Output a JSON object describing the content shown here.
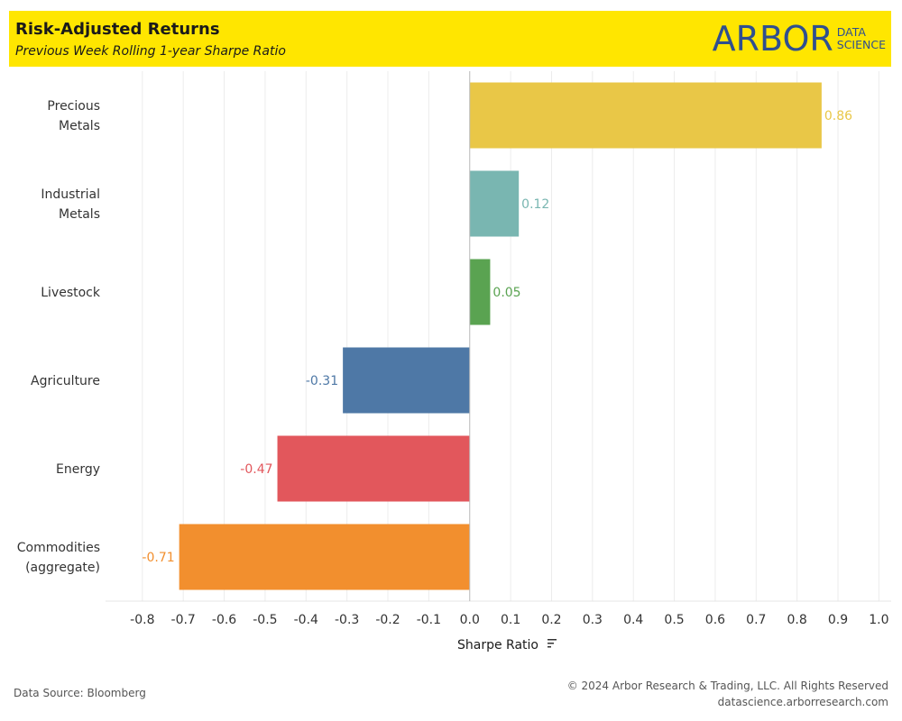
{
  "header": {
    "title": "Risk-Adjusted Returns",
    "subtitle": "Previous Week Rolling 1-year Sharpe Ratio",
    "logo": {
      "word": "ARBOR",
      "line1": "DATA",
      "line2": "SCIENCE"
    }
  },
  "footer": {
    "source": "Data Source: Bloomberg",
    "copyright": "© 2024 Arbor Research & Trading, LLC. All Rights Reserved",
    "website": "datascience.arborresearch.com"
  },
  "colors": {
    "header_bg": "#ffe600",
    "logo": "#2f4f8f"
  },
  "chart_data": {
    "type": "bar",
    "orientation": "horizontal",
    "xlabel": "Sharpe Ratio",
    "xlabel_icon": "sort-descending-icon",
    "xlim": [
      -0.89,
      1.03
    ],
    "xticks": [
      -0.8,
      -0.7,
      -0.6,
      -0.5,
      -0.4,
      -0.3,
      -0.2,
      -0.1,
      0.0,
      0.1,
      0.2,
      0.3,
      0.4,
      0.5,
      0.6,
      0.7,
      0.8,
      0.9,
      1.0
    ],
    "grid": true,
    "bars": [
      {
        "category": [
          "Precious",
          "Metals"
        ],
        "value": 0.86,
        "label": "0.86",
        "color": "#e9c747"
      },
      {
        "category": [
          "Industrial",
          "Metals"
        ],
        "value": 0.12,
        "label": "0.12",
        "color": "#79b6b1"
      },
      {
        "category": [
          "Livestock"
        ],
        "value": 0.05,
        "label": "0.05",
        "color": "#5aa351"
      },
      {
        "category": [
          "Agriculture"
        ],
        "value": -0.31,
        "label": "-0.31",
        "color": "#4e78a6"
      },
      {
        "category": [
          "Energy"
        ],
        "value": -0.47,
        "label": "-0.47",
        "color": "#e2575c"
      },
      {
        "category": [
          "Commodities",
          "(aggregate)"
        ],
        "value": -0.71,
        "label": "-0.71",
        "color": "#f28f2e"
      }
    ]
  }
}
